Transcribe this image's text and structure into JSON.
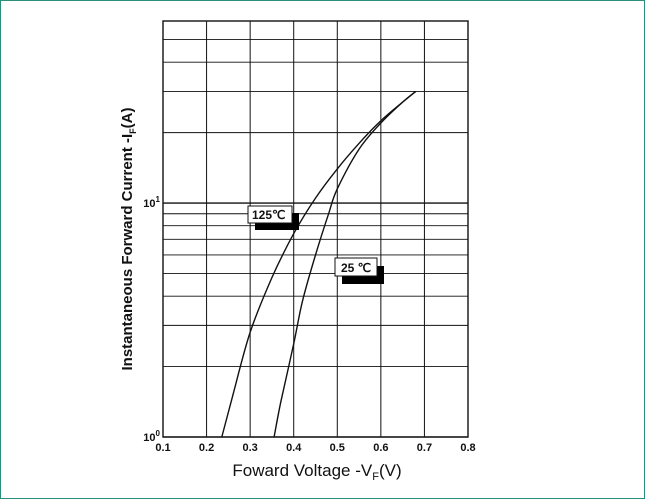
{
  "chart_data": {
    "type": "line",
    "title": "",
    "xlabel": "Foward Voltage -VF(V)",
    "xlabel_parts": {
      "main": "Foward Voltage -V",
      "sub": "F",
      "tail": "(V)"
    },
    "ylabel": "Instantaneous Forward Current -IF(A)",
    "ylabel_parts": {
      "main": "Instantaneous Forward Current -I",
      "sub": "F",
      "tail": "(A)"
    },
    "xlim": [
      0.1,
      0.8
    ],
    "ylim": [
      1,
      60
    ],
    "yscale": "log",
    "grid": true,
    "x_ticks": [
      "0.1",
      "0.2",
      "0.3",
      "0.4",
      "0.5",
      "0.6",
      "0.7",
      "0.8"
    ],
    "y_ticks": [
      {
        "base": "10",
        "exp": "0",
        "value": 1
      },
      {
        "base": "10",
        "exp": "1",
        "value": 10
      }
    ],
    "series": [
      {
        "name": "125℃",
        "label": "125℃",
        "color": "#111111",
        "points": [
          [
            0.235,
            1.0
          ],
          [
            0.26,
            1.5
          ],
          [
            0.3,
            2.8
          ],
          [
            0.35,
            4.8
          ],
          [
            0.4,
            7.4
          ],
          [
            0.45,
            10.5
          ],
          [
            0.5,
            14.0
          ],
          [
            0.55,
            18.0
          ],
          [
            0.6,
            22.5
          ],
          [
            0.65,
            27.0
          ],
          [
            0.68,
            30.0
          ]
        ]
      },
      {
        "name": "25℃",
        "label": "25 ℃",
        "color": "#111111",
        "points": [
          [
            0.355,
            1.0
          ],
          [
            0.37,
            1.4
          ],
          [
            0.4,
            2.5
          ],
          [
            0.42,
            3.8
          ],
          [
            0.45,
            6.0
          ],
          [
            0.48,
            9.0
          ],
          [
            0.5,
            11.5
          ],
          [
            0.55,
            17.0
          ],
          [
            0.6,
            22.0
          ],
          [
            0.65,
            27.0
          ],
          [
            0.68,
            30.0
          ]
        ]
      }
    ]
  }
}
